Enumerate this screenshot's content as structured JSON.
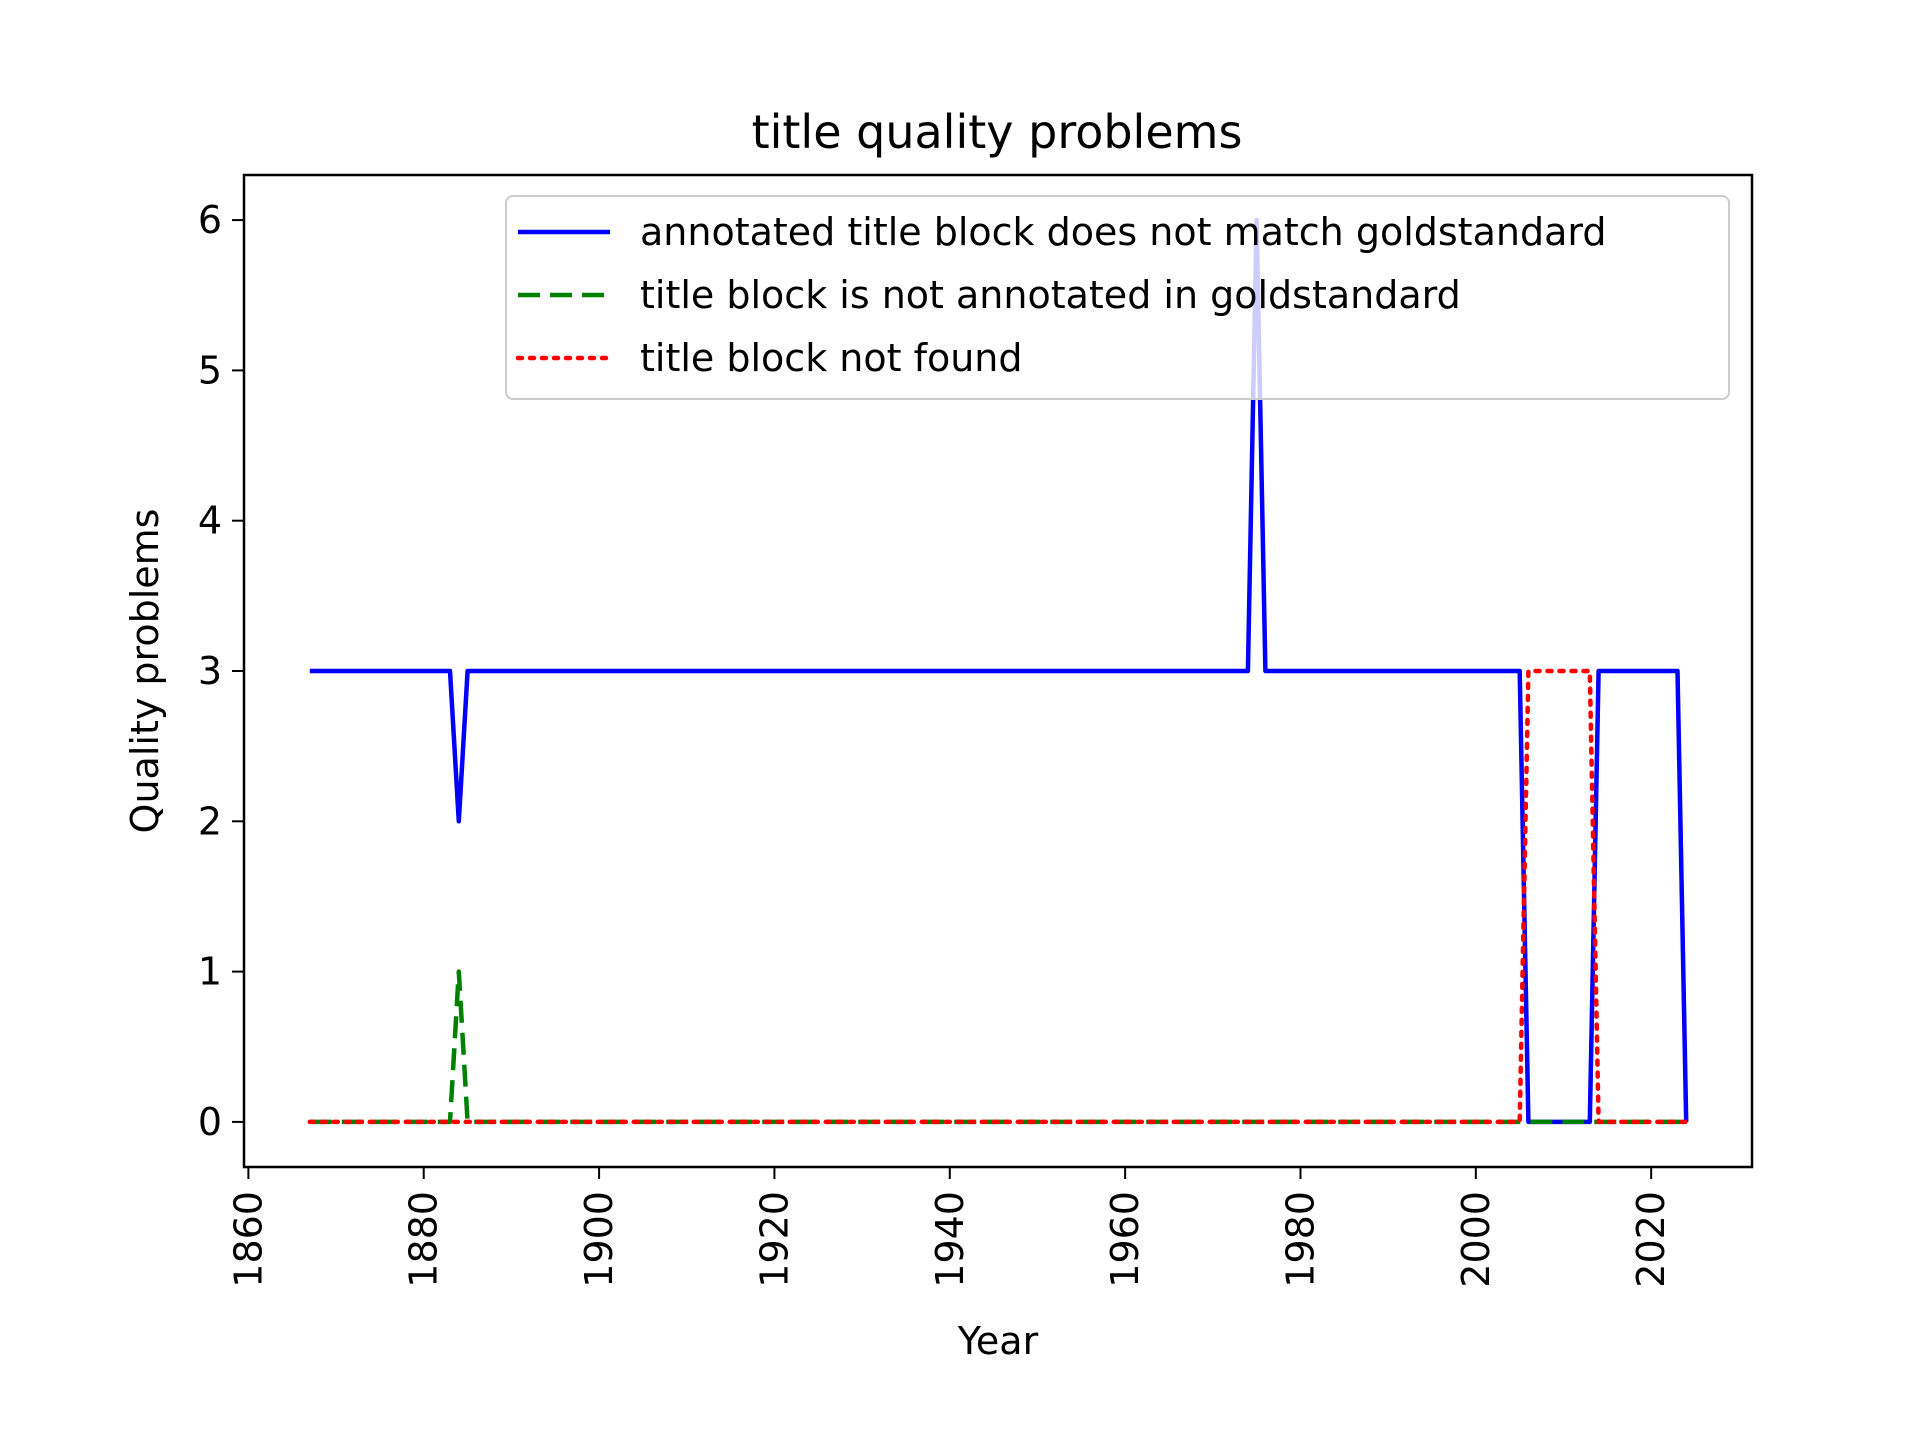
{
  "chart_data": {
    "type": "line",
    "title": "title quality problems",
    "xlabel": "Year",
    "ylabel": "Quality problems",
    "xlim": [
      1859.5,
      2031.5
    ],
    "ylim": [
      -0.3,
      6.3
    ],
    "xticks": [
      1860,
      1880,
      1900,
      1920,
      1940,
      1960,
      1980,
      2000,
      2020
    ],
    "yticks": [
      0,
      1,
      2,
      3,
      4,
      5,
      6
    ],
    "grid": false,
    "legend_position": "top-right",
    "series": [
      {
        "name": "annotated title block does not match goldstandard",
        "color": "#0000ff",
        "style": "solid",
        "x": [
          1867,
          1883,
          1884,
          1885,
          1974,
          1975,
          1976,
          2005,
          2006,
          2013,
          2014,
          2023,
          2024
        ],
        "y": [
          3,
          3,
          2,
          3,
          3,
          6,
          3,
          3,
          0,
          0,
          3,
          3,
          0
        ]
      },
      {
        "name": "title block is not annotated in goldstandard",
        "color": "#008000",
        "style": "dashed",
        "x": [
          1867,
          1883,
          1884,
          1885,
          2024
        ],
        "y": [
          0,
          0,
          1,
          0,
          0
        ]
      },
      {
        "name": "title block not found",
        "color": "#ff0000",
        "style": "dotted",
        "x": [
          1867,
          2005,
          2006,
          2013,
          2014,
          2024
        ],
        "y": [
          0,
          0,
          3,
          3,
          0,
          0
        ]
      }
    ]
  }
}
